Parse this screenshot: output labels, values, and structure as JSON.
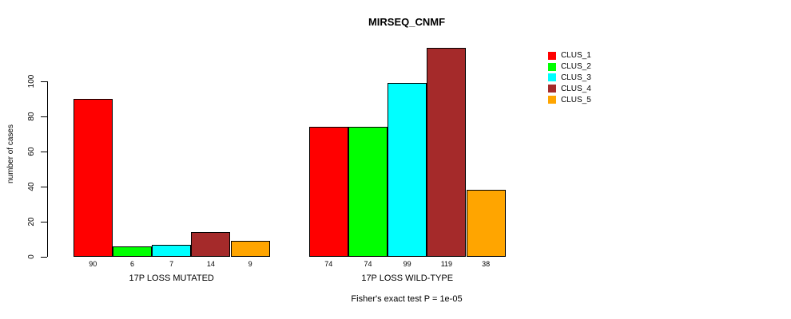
{
  "chart_data": {
    "type": "bar",
    "title": "MIRSEQ_CNMF",
    "ylabel": "number of cases",
    "xlabel": "",
    "ylim": [
      0,
      100
    ],
    "yticks": [
      0,
      20,
      40,
      60,
      80,
      100
    ],
    "grid": false,
    "legend_position": "right",
    "bar_value_labels": true,
    "series_names": [
      "CLUS_1",
      "CLUS_2",
      "CLUS_3",
      "CLUS_4",
      "CLUS_5"
    ],
    "colors": [
      "#FF0000",
      "#00FF00",
      "#00FFFF",
      "#A52A2A",
      "#FFA500"
    ],
    "bar_border_color": "#000000",
    "groups": [
      {
        "label": "17P LOSS MUTATED",
        "values": [
          90,
          6,
          7,
          14,
          9
        ]
      },
      {
        "label": "17P LOSS WILD-TYPE",
        "values": [
          74,
          74,
          99,
          119,
          38
        ]
      }
    ],
    "annotation": "Fisher's exact test P = 1e-05"
  }
}
